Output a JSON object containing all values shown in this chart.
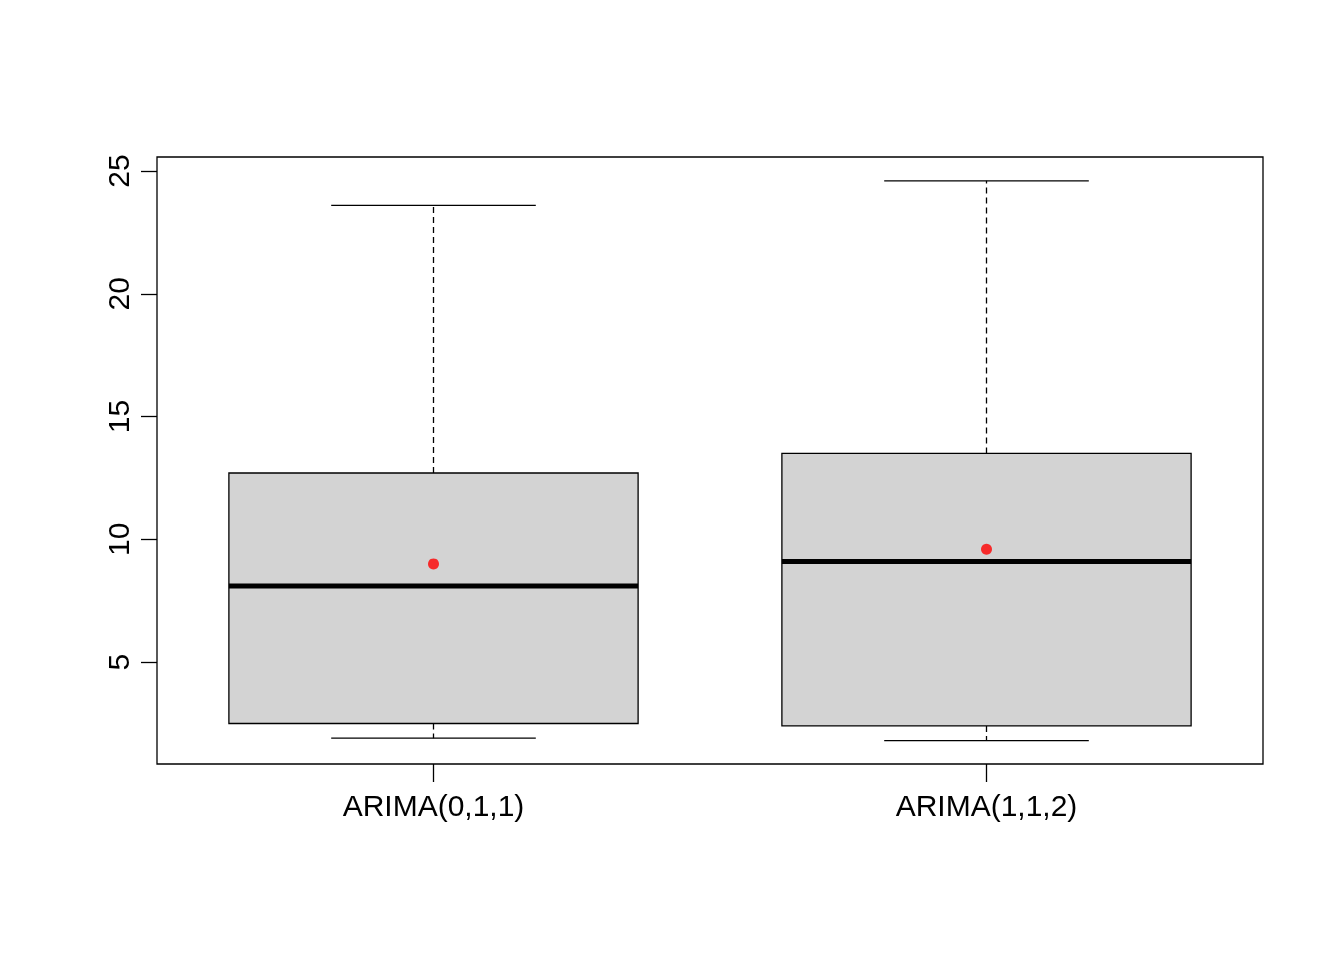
{
  "chart_data": {
    "type": "box",
    "categories": [
      "ARIMA(0,1,1)",
      "ARIMA(1,1,2)"
    ],
    "boxes": [
      {
        "low": 1.9,
        "q1": 2.5,
        "median": 8.1,
        "q3": 12.7,
        "high": 23.6,
        "mean": 9.0
      },
      {
        "low": 1.8,
        "q1": 2.4,
        "median": 9.1,
        "q3": 13.5,
        "high": 24.6,
        "mean": 9.6
      }
    ],
    "color": "#d3d3d3",
    "line_style": "dashed",
    "ylim": [
      0.85,
      25.57
    ],
    "yticks": [
      5,
      10,
      15,
      20,
      25
    ],
    "grid": false
  }
}
